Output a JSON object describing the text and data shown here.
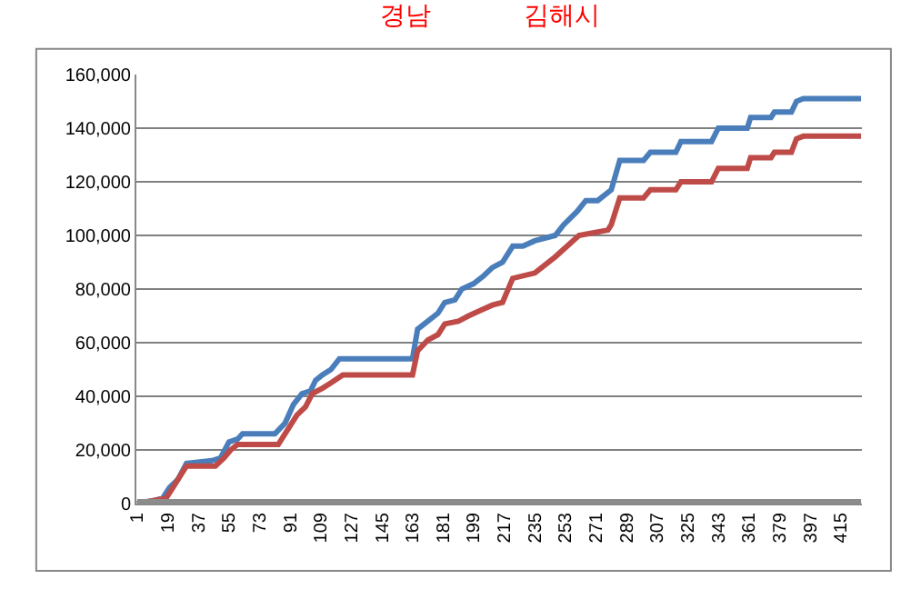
{
  "chart_data": {
    "type": "line",
    "annotations": [
      "경남",
      "김해시"
    ],
    "xlim": [
      0.5,
      427.5
    ],
    "xticks": [
      1,
      19,
      37,
      55,
      73,
      91,
      109,
      127,
      145,
      163,
      181,
      199,
      217,
      235,
      253,
      271,
      289,
      307,
      325,
      343,
      361,
      379,
      397,
      415
    ],
    "ylim": [
      0,
      160000
    ],
    "yticks": [
      {
        "value": 0,
        "label": "0"
      },
      {
        "value": 20000,
        "label": "20,000"
      },
      {
        "value": 40000,
        "label": "40,000"
      },
      {
        "value": 60000,
        "label": "60,000"
      },
      {
        "value": 80000,
        "label": "80,000"
      },
      {
        "value": 100000,
        "label": "100,000"
      },
      {
        "value": 120000,
        "label": "120,000"
      },
      {
        "value": 140000,
        "label": "140,000"
      },
      {
        "value": 160000,
        "label": "160,000"
      }
    ],
    "grid": "y",
    "marker": "none",
    "line_style": "solid",
    "series": [
      {
        "color": "#4a7ebb",
        "x": [
          1,
          10,
          16,
          20,
          25,
          30,
          45,
          50,
          55,
          60,
          63,
          82,
          88,
          93,
          98,
          103,
          106,
          110,
          115,
          120,
          163,
          166,
          172,
          178,
          182,
          188,
          192,
          199,
          205,
          210,
          216,
          222,
          228,
          235,
          247,
          252,
          260,
          265,
          272,
          280,
          285,
          299,
          303,
          318,
          321,
          339,
          343,
          360,
          362,
          374,
          376,
          386,
          389,
          393,
          427
        ],
        "values": [
          0,
          1000,
          2000,
          6000,
          9000,
          15000,
          16000,
          17000,
          23000,
          24000,
          26000,
          26000,
          30000,
          37000,
          41000,
          42000,
          46000,
          48000,
          50000,
          54000,
          54000,
          65000,
          68000,
          71000,
          75000,
          76000,
          80000,
          82000,
          85000,
          88000,
          90000,
          96000,
          96000,
          98000,
          100000,
          104000,
          109000,
          113000,
          113000,
          117000,
          128000,
          128000,
          131000,
          131000,
          135000,
          135000,
          140000,
          140000,
          144000,
          144000,
          146000,
          146000,
          150000,
          151000,
          151000
        ]
      },
      {
        "color": "#be4b48",
        "x": [
          1,
          18,
          22,
          25,
          30,
          47,
          52,
          56,
          60,
          84,
          90,
          95,
          100,
          104,
          110,
          115,
          122,
          163,
          166,
          172,
          178,
          182,
          190,
          196,
          203,
          210,
          216,
          222,
          235,
          247,
          261,
          278,
          280,
          285,
          299,
          303,
          318,
          321,
          339,
          343,
          360,
          362,
          374,
          376,
          386,
          389,
          393,
          427
        ],
        "values": [
          0,
          2000,
          6000,
          9000,
          14000,
          14000,
          17000,
          20000,
          22000,
          22000,
          28000,
          33000,
          36000,
          41000,
          43000,
          45000,
          48000,
          48000,
          57000,
          61000,
          63000,
          67000,
          68000,
          70000,
          72000,
          74000,
          75000,
          84000,
          86000,
          92000,
          100000,
          102000,
          104000,
          114000,
          114000,
          117000,
          117000,
          120000,
          120000,
          125000,
          125000,
          129000,
          129000,
          131000,
          131000,
          136000,
          137000,
          137000
        ]
      },
      {
        "color": "#8c8c8c",
        "x": [
          1,
          427
        ],
        "values": [
          0,
          0
        ]
      }
    ]
  }
}
